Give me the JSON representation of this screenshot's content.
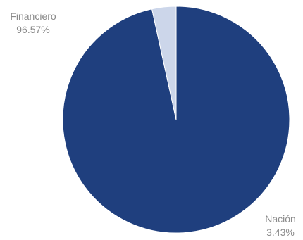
{
  "chart_data": {
    "type": "pie",
    "title": "",
    "legend": "none",
    "start_angle_deg": 0,
    "direction": "clockwise",
    "slices": [
      {
        "name": "Financiero",
        "value": 96.57,
        "value_label": "96.57%",
        "color": "#1f3f7e"
      },
      {
        "name": "Nación",
        "value": 3.43,
        "value_label": "3.43%",
        "color": "#ccd6ea"
      }
    ]
  }
}
